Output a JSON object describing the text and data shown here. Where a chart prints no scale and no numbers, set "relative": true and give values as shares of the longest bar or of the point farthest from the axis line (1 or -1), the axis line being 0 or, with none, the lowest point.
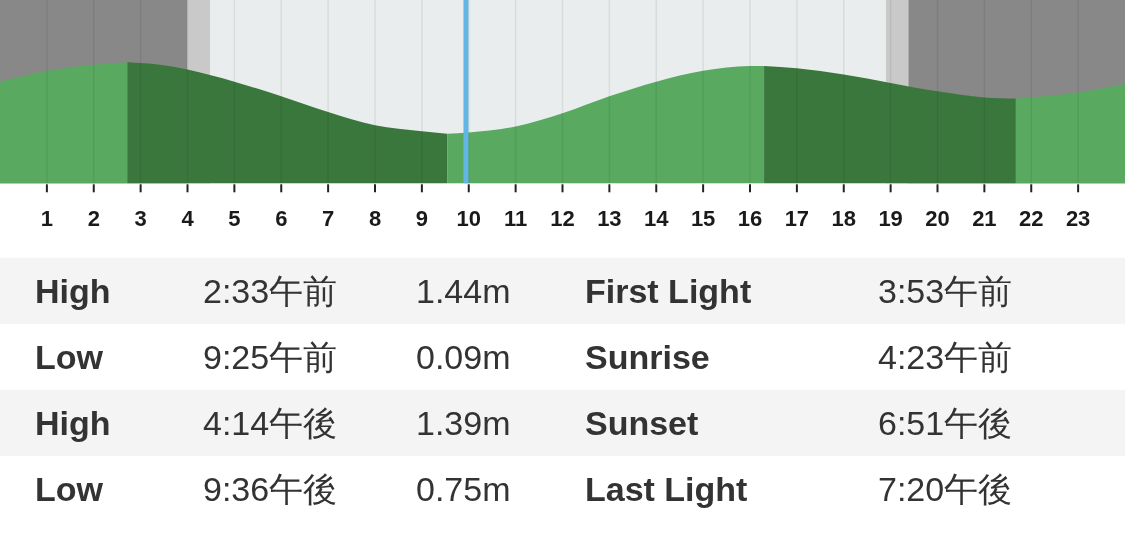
{
  "chart_data": [
    {
      "type": "area",
      "relative": true,
      "xlim": [
        0,
        24
      ],
      "xticks": [
        1,
        2,
        3,
        4,
        5,
        6,
        7,
        8,
        9,
        10,
        11,
        12,
        13,
        14,
        15,
        16,
        17,
        18,
        19,
        20,
        21,
        22,
        23
      ],
      "grid": "x",
      "bands": [
        {
          "axis": "x",
          "from": 0,
          "to": 4.0,
          "color": "#888888"
        },
        {
          "axis": "x",
          "from": 4.0,
          "to": 4.48,
          "color": "#c9c9c9"
        },
        {
          "axis": "x",
          "from": 18.9,
          "to": 19.38,
          "color": "#c9c9c9"
        },
        {
          "axis": "x",
          "from": 19.38,
          "to": 24,
          "color": "#888888"
        }
      ],
      "series": [
        {
          "color": "#59a961",
          "x": [
            0,
            1,
            2,
            2.72
          ],
          "values": [
            0.84,
            0.93,
            0.98,
            1.0
          ]
        },
        {
          "color": "#3a773d",
          "x": [
            2.72,
            3.41,
            4,
            5,
            6,
            7,
            8,
            9,
            9.54
          ],
          "values": [
            1.0,
            0.98,
            0.94,
            0.84,
            0.72,
            0.59,
            0.48,
            0.43,
            0.41
          ]
        },
        {
          "color": "#59a961",
          "x": [
            9.54,
            10,
            11,
            12,
            13,
            14,
            15,
            16,
            16.3
          ],
          "values": [
            0.41,
            0.42,
            0.47,
            0.58,
            0.72,
            0.84,
            0.93,
            0.97,
            0.97
          ]
        },
        {
          "color": "#3a773d",
          "x": [
            16.3,
            17,
            18,
            19,
            20,
            21,
            21.67
          ],
          "values": [
            0.97,
            0.95,
            0.9,
            0.83,
            0.76,
            0.71,
            0.7
          ]
        },
        {
          "color": "#59a961",
          "x": [
            21.67,
            22,
            23,
            24
          ],
          "values": [
            0.7,
            0.71,
            0.75,
            0.82
          ]
        }
      ],
      "ref_lines": [
        {
          "axis": "x",
          "value": 9.94,
          "color": "#62b6e6"
        }
      ]
    },
    {
      "type": "other",
      "annotations": [
        "High",
        "2:33午前",
        "1.44m",
        "First Light",
        "3:53午前",
        "Low",
        "9:25午前",
        "0.09m",
        "Sunrise",
        "4:23午前",
        "High",
        "4:14午後",
        "1.39m",
        "Sunset",
        "6:51午後",
        "Low",
        "9:36午後",
        "0.75m",
        "Last Light",
        "7:20午後"
      ]
    }
  ]
}
